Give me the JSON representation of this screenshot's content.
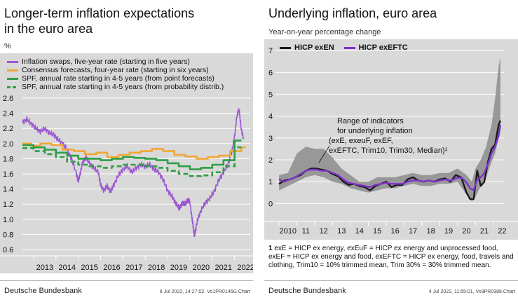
{
  "left": {
    "title_line1": "Longer-term inflation expectations",
    "title_line2": "in the euro area",
    "unit": "%",
    "footer": "Deutsche Bundesbank",
    "stamp": "8 Jul 2022, 14:27:02, Vo1PR0146G.Chart"
  },
  "right": {
    "title": "Underlying inflation, euro area",
    "subtitle": "Year-on-year percentage change",
    "annotation": [
      "Range of indicators",
      "for underlying inflation",
      "(exE, exeuF, exEF,",
      "exEFTC, Trim10, Trim30, Median)¹"
    ],
    "footnote_num": "1",
    "footnote_text": "exE = HICP ex energy, exEuF = HICP ex energy and unprocessed food, exEF = HICP ex energy and food, exEFTC = HICP ex energy, food, travels and clothing, Trim10 = 10% trimmed mean, Trim 30% = 30% trimmed mean.",
    "footer": "Deutsche Bundesbank",
    "stamp": "4 Jul 2022, 11:55:01, Vo3PR0388.Chart"
  },
  "colors": {
    "purple": "#9b59d0",
    "orange": "#f0a732",
    "green": "#2e9e45",
    "black": "#1a1a1a",
    "violet": "#7d32c8",
    "range": "#8c8c8c",
    "plot_bg": "#d9d9d9"
  },
  "chart_data": [
    {
      "type": "line",
      "title": "Longer-term inflation expectations in the euro area",
      "ylabel": "%",
      "ylim": [
        0.6,
        2.6
      ],
      "yticks": [
        0.6,
        0.8,
        1.0,
        1.2,
        1.4,
        1.6,
        1.8,
        2.0,
        2.2,
        2.4,
        2.6
      ],
      "xlim": [
        2012.5,
        2022.7
      ],
      "xtick_labels": [
        "2013",
        "2014",
        "2015",
        "2016",
        "2017",
        "2018",
        "2019",
        "2020",
        "2021",
        "2022"
      ],
      "series": [
        {
          "name": "Inflation swaps, five-year rate (starting in five years)",
          "color": "purple",
          "style": "solid",
          "x": [
            2012.5,
            2012.7,
            2012.9,
            2013.1,
            2013.3,
            2013.5,
            2013.7,
            2013.9,
            2014.1,
            2014.3,
            2014.5,
            2014.7,
            2014.9,
            2015.0,
            2015.1,
            2015.2,
            2015.35,
            2015.5,
            2015.7,
            2015.9,
            2016.0,
            2016.15,
            2016.3,
            2016.45,
            2016.6,
            2016.8,
            2017.0,
            2017.2,
            2017.4,
            2017.6,
            2017.8,
            2018.0,
            2018.2,
            2018.4,
            2018.6,
            2018.8,
            2019.0,
            2019.2,
            2019.35,
            2019.5,
            2019.6,
            2019.7,
            2019.8,
            2019.9,
            2020.0,
            2020.1,
            2020.15,
            2020.2,
            2020.25,
            2020.35,
            2020.5,
            2020.7,
            2020.9,
            2021.1,
            2021.3,
            2021.5,
            2021.7,
            2021.9,
            2022.0,
            2022.1,
            2022.2,
            2022.3,
            2022.4
          ],
          "y": [
            2.28,
            2.32,
            2.26,
            2.2,
            2.16,
            2.2,
            2.14,
            2.12,
            2.05,
            2.0,
            1.92,
            1.8,
            1.62,
            1.5,
            1.62,
            1.76,
            1.82,
            1.74,
            1.68,
            1.62,
            1.45,
            1.38,
            1.44,
            1.36,
            1.46,
            1.58,
            1.66,
            1.7,
            1.62,
            1.68,
            1.72,
            1.7,
            1.72,
            1.66,
            1.62,
            1.52,
            1.38,
            1.3,
            1.22,
            1.15,
            1.18,
            1.22,
            1.2,
            1.26,
            1.22,
            1.0,
            0.9,
            0.78,
            0.86,
            1.0,
            1.12,
            1.22,
            1.28,
            1.38,
            1.52,
            1.62,
            1.72,
            1.92,
            2.1,
            2.36,
            2.46,
            2.18,
            2.08
          ]
        },
        {
          "name": "Consensus forecasts, four-year rate (starting in six years)",
          "color": "orange",
          "style": "step",
          "x": [
            2012.5,
            2012.9,
            2013.3,
            2013.8,
            2014.3,
            2014.8,
            2015.3,
            2015.8,
            2016.3,
            2016.8,
            2017.3,
            2017.8,
            2018.3,
            2018.8,
            2019.3,
            2019.8,
            2020.3,
            2020.8,
            2021.3,
            2021.8,
            2022.3,
            2022.5
          ],
          "y": [
            2.0,
            1.97,
            2.0,
            1.98,
            1.92,
            1.9,
            1.86,
            1.88,
            1.82,
            1.85,
            1.88,
            1.9,
            1.93,
            1.9,
            1.85,
            1.83,
            1.8,
            1.82,
            1.84,
            1.9,
            1.95,
            1.95
          ]
        },
        {
          "name": "SPF, annual rate starting in 4-5 years (from point forecasts)",
          "color": "green",
          "style": "step",
          "x": [
            2012.5,
            2013.0,
            2013.5,
            2014.0,
            2014.5,
            2015.0,
            2015.5,
            2016.0,
            2016.5,
            2017.0,
            2017.5,
            2018.0,
            2018.5,
            2019.0,
            2019.5,
            2020.0,
            2020.5,
            2021.0,
            2021.5,
            2022.0,
            2022.3
          ],
          "y": [
            1.98,
            1.95,
            1.92,
            1.88,
            1.84,
            1.8,
            1.8,
            1.78,
            1.8,
            1.82,
            1.81,
            1.8,
            1.78,
            1.74,
            1.7,
            1.66,
            1.68,
            1.72,
            1.78,
            2.04,
            2.04
          ]
        },
        {
          "name": "SPF, annual rate starting in 4-5 years (from probability distrib.)",
          "color": "green",
          "style": "dashed-step",
          "x": [
            2012.5,
            2013.0,
            2013.5,
            2014.0,
            2014.5,
            2015.0,
            2015.5,
            2016.0,
            2016.5,
            2017.0,
            2017.5,
            2018.0,
            2018.5,
            2019.0,
            2019.5,
            2020.0,
            2020.5,
            2021.0,
            2021.5,
            2022.0,
            2022.3
          ],
          "y": [
            1.94,
            1.9,
            1.86,
            1.82,
            1.76,
            1.72,
            1.7,
            1.68,
            1.7,
            1.72,
            1.72,
            1.7,
            1.68,
            1.64,
            1.6,
            1.57,
            1.58,
            1.62,
            1.7,
            1.95,
            1.95
          ]
        }
      ]
    },
    {
      "type": "line",
      "title": "Underlying inflation, euro area",
      "ylabel": "Year-on-year percentage change",
      "ylim": [
        -0.6,
        7.2
      ],
      "yticks": [
        0,
        1,
        2,
        3,
        4,
        5,
        6,
        7
      ],
      "xlim": [
        2009.8,
        2022.6
      ],
      "xtick_labels": [
        "2010",
        "11",
        "12",
        "13",
        "14",
        "15",
        "16",
        "17",
        "18",
        "19",
        "20",
        "21",
        "22"
      ],
      "series": [
        {
          "name": "HICP exEN",
          "color": "black",
          "x": [
            2010.0,
            2010.3,
            2010.6,
            2010.9,
            2011.2,
            2011.5,
            2011.8,
            2012.1,
            2012.4,
            2012.7,
            2013.0,
            2013.3,
            2013.6,
            2013.9,
            2014.2,
            2014.5,
            2014.8,
            2015.1,
            2015.4,
            2015.7,
            2016.0,
            2016.3,
            2016.6,
            2016.9,
            2017.2,
            2017.5,
            2017.8,
            2018.1,
            2018.4,
            2018.7,
            2019.0,
            2019.3,
            2019.6,
            2019.9,
            2020.2,
            2020.5,
            2020.7,
            2020.9,
            2021.1,
            2021.3,
            2021.5,
            2021.7,
            2021.9,
            2022.1,
            2022.3,
            2022.4
          ],
          "y": [
            0.9,
            1.05,
            1.1,
            1.2,
            1.3,
            1.5,
            1.6,
            1.6,
            1.55,
            1.5,
            1.35,
            1.25,
            1.0,
            0.85,
            0.9,
            0.8,
            0.75,
            0.6,
            0.8,
            0.9,
            1.0,
            0.75,
            0.85,
            0.85,
            1.1,
            1.2,
            1.05,
            1.0,
            1.05,
            1.0,
            1.1,
            1.15,
            1.0,
            1.3,
            1.2,
            0.5,
            0.2,
            0.2,
            1.5,
            0.8,
            1.0,
            1.9,
            2.5,
            2.7,
            3.6,
            3.8
          ]
        },
        {
          "name": "HICP exEFTC",
          "color": "violet",
          "x": [
            2010.0,
            2010.3,
            2010.6,
            2010.9,
            2011.2,
            2011.5,
            2011.8,
            2012.1,
            2012.4,
            2012.7,
            2013.0,
            2013.3,
            2013.6,
            2013.9,
            2014.2,
            2014.5,
            2014.8,
            2015.1,
            2015.4,
            2015.7,
            2016.0,
            2016.3,
            2016.6,
            2016.9,
            2017.2,
            2017.5,
            2017.8,
            2018.1,
            2018.4,
            2018.7,
            2019.0,
            2019.3,
            2019.6,
            2019.9,
            2020.2,
            2020.5,
            2020.7,
            2020.9,
            2021.1,
            2021.3,
            2021.5,
            2021.7,
            2021.9,
            2022.1,
            2022.3,
            2022.4
          ],
          "y": [
            1.1,
            1.0,
            1.1,
            1.2,
            1.35,
            1.5,
            1.55,
            1.55,
            1.5,
            1.5,
            1.4,
            1.3,
            1.1,
            0.95,
            0.9,
            0.85,
            0.8,
            0.75,
            0.85,
            0.9,
            0.95,
            0.9,
            0.9,
            0.9,
            1.0,
            1.05,
            1.05,
            1.0,
            1.05,
            1.0,
            1.05,
            1.1,
            1.05,
            1.15,
            1.2,
            0.95,
            0.7,
            0.6,
            1.1,
            1.2,
            1.4,
            1.8,
            2.3,
            2.6,
            3.1,
            3.6
          ]
        },
        {
          "name": "Range of indicators for underlying inflation",
          "color": "range",
          "style": "band",
          "x": [
            2010.0,
            2010.5,
            2011.0,
            2011.5,
            2012.0,
            2012.5,
            2013.0,
            2013.5,
            2014.0,
            2014.5,
            2015.0,
            2015.5,
            2016.0,
            2016.5,
            2017.0,
            2017.5,
            2018.0,
            2018.5,
            2019.0,
            2019.5,
            2020.0,
            2020.5,
            2020.8,
            2021.0,
            2021.3,
            2021.6,
            2021.9,
            2022.1,
            2022.3,
            2022.4
          ],
          "lower": [
            0.6,
            0.8,
            1.0,
            1.2,
            1.3,
            1.2,
            1.0,
            0.9,
            0.7,
            0.6,
            0.5,
            0.6,
            0.7,
            0.7,
            0.8,
            0.9,
            0.8,
            0.8,
            0.9,
            0.9,
            1.0,
            0.4,
            0.1,
            0.3,
            0.8,
            1.2,
            1.9,
            2.3,
            3.0,
            3.4
          ],
          "upper": [
            1.3,
            1.4,
            2.3,
            2.6,
            2.5,
            2.5,
            2.1,
            1.6,
            1.3,
            1.0,
            1.0,
            1.2,
            1.2,
            1.2,
            1.3,
            1.4,
            1.3,
            1.3,
            1.4,
            1.4,
            1.6,
            1.3,
            1.0,
            1.6,
            2.0,
            2.6,
            3.6,
            4.8,
            6.3,
            6.7
          ]
        }
      ]
    }
  ]
}
